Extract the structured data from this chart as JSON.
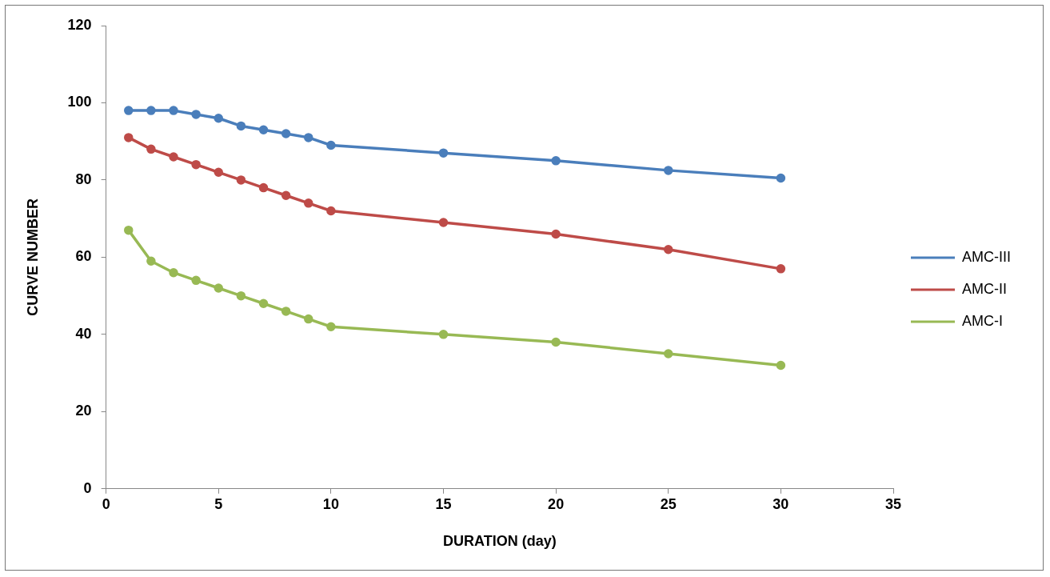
{
  "chart_data": {
    "type": "line",
    "xlabel": "DURATION (day)",
    "ylabel": "CURVE NUMBER",
    "x": [
      1,
      2,
      3,
      4,
      5,
      6,
      7,
      8,
      9,
      10,
      15,
      20,
      25,
      30
    ],
    "series": [
      {
        "name": "AMC-III",
        "color": "#4a7ebb",
        "values": [
          98,
          98,
          98,
          97,
          96,
          94,
          93,
          92,
          91,
          89,
          87,
          85,
          82.5,
          80.5
        ]
      },
      {
        "name": "AMC-II",
        "color": "#be4b48",
        "values": [
          91,
          88,
          86,
          84,
          82,
          80,
          78,
          76,
          74,
          72,
          69,
          66,
          62,
          57
        ]
      },
      {
        "name": "AMC-I",
        "color": "#98b954",
        "values": [
          67,
          59,
          56,
          54,
          52,
          50,
          48,
          46,
          44,
          42,
          40,
          38,
          35,
          32
        ]
      }
    ],
    "xlim": [
      0,
      35
    ],
    "xticks": [
      0,
      5,
      10,
      15,
      20,
      25,
      30,
      35
    ],
    "ylim": [
      0,
      120
    ],
    "yticks": [
      0,
      20,
      40,
      60,
      80,
      100,
      120
    ],
    "grid": false,
    "legend": "right",
    "marker": "circle",
    "line_style": "solid"
  }
}
